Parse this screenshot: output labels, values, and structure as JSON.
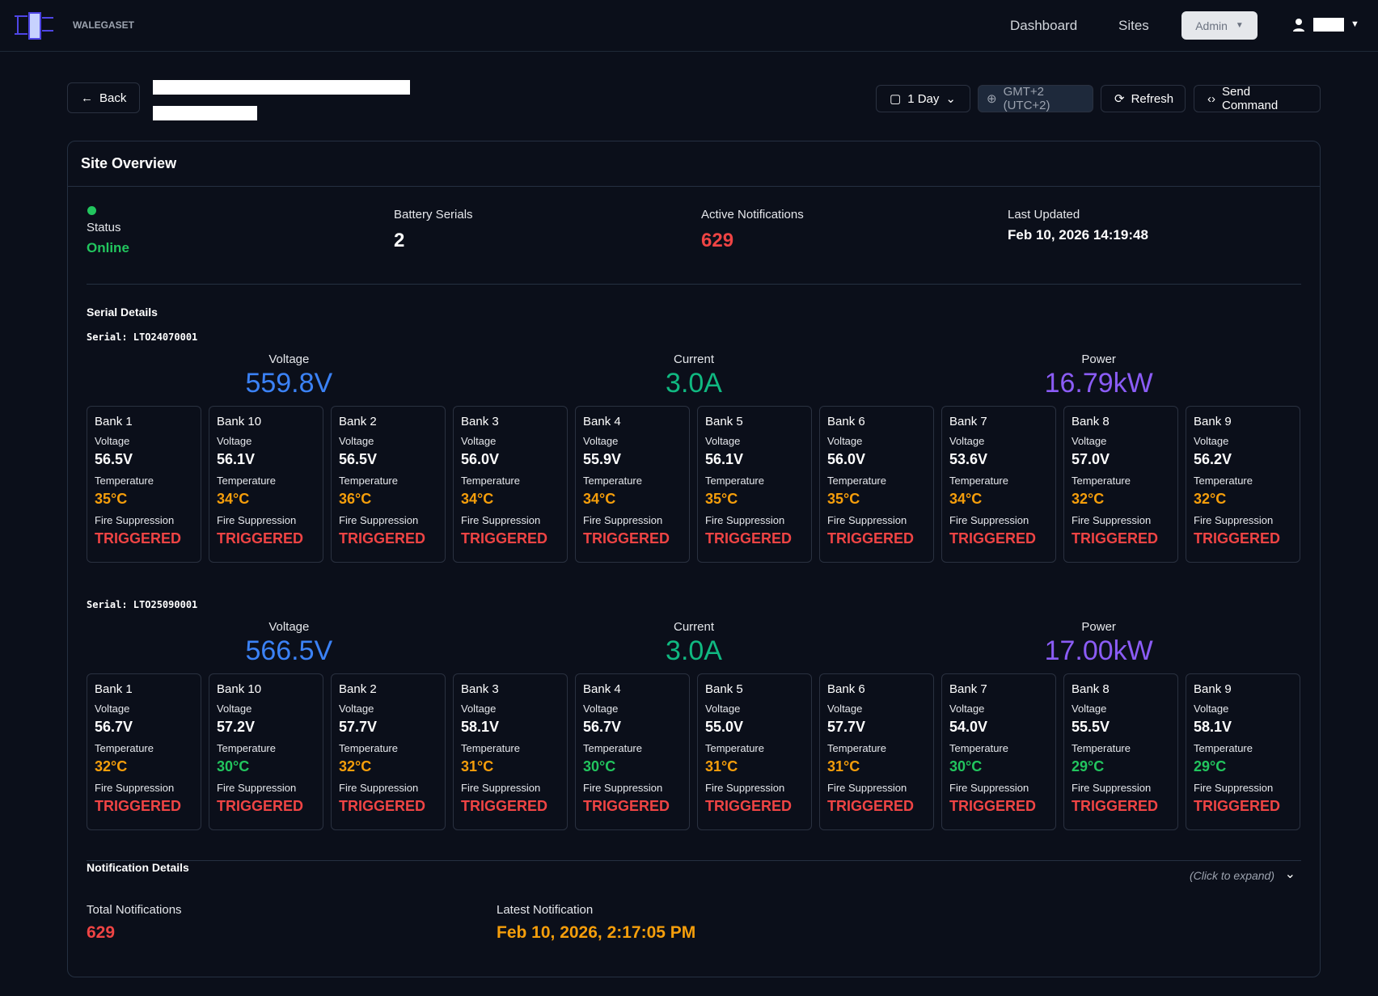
{
  "nav": {
    "brand": "WALEGASET",
    "links": [
      "Dashboard",
      "Sites"
    ],
    "role": "Admin"
  },
  "toolbar": {
    "back": "Back",
    "range": "1 Day",
    "timezone": "GMT+2 (UTC+2)",
    "refresh": "Refresh",
    "send": "Send Command"
  },
  "overview": {
    "title": "Site Overview",
    "stats": [
      {
        "label": "Status",
        "value": "Online",
        "color": "#22c55e"
      },
      {
        "label": "Battery Serials",
        "value": "2",
        "color": "#ffffff"
      },
      {
        "label": "Active Notifications",
        "value": "629",
        "color": "#ef4444"
      },
      {
        "label": "Last Updated",
        "value": "Feb 10, 2026 14:19:48",
        "color": "#ffffff"
      }
    ],
    "serial_title": "Serial Details",
    "bank_labels": {
      "voltage": "Voltage",
      "temperature": "Temperature",
      "fire": "Fire Suppression"
    },
    "serials": [
      {
        "label": "Serial: LTO24070001",
        "metrics": [
          {
            "label": "Voltage",
            "value": "559.8V",
            "color": "#3b82f6"
          },
          {
            "label": "Current",
            "value": "3.0A",
            "color": "#10b981"
          },
          {
            "label": "Power",
            "value": "16.79kW",
            "color": "#8b5cf6"
          }
        ],
        "banks": [
          {
            "name": "Bank 1",
            "voltage": "56.5V",
            "temperature": "35°C",
            "temp_color": "#f59e0b",
            "fire": "TRIGGERED"
          },
          {
            "name": "Bank 10",
            "voltage": "56.1V",
            "temperature": "34°C",
            "temp_color": "#f59e0b",
            "fire": "TRIGGERED"
          },
          {
            "name": "Bank 2",
            "voltage": "56.5V",
            "temperature": "36°C",
            "temp_color": "#f59e0b",
            "fire": "TRIGGERED"
          },
          {
            "name": "Bank 3",
            "voltage": "56.0V",
            "temperature": "34°C",
            "temp_color": "#f59e0b",
            "fire": "TRIGGERED"
          },
          {
            "name": "Bank 4",
            "voltage": "55.9V",
            "temperature": "34°C",
            "temp_color": "#f59e0b",
            "fire": "TRIGGERED"
          },
          {
            "name": "Bank 5",
            "voltage": "56.1V",
            "temperature": "35°C",
            "temp_color": "#f59e0b",
            "fire": "TRIGGERED"
          },
          {
            "name": "Bank 6",
            "voltage": "56.0V",
            "temperature": "35°C",
            "temp_color": "#f59e0b",
            "fire": "TRIGGERED"
          },
          {
            "name": "Bank 7",
            "voltage": "53.6V",
            "temperature": "34°C",
            "temp_color": "#f59e0b",
            "fire": "TRIGGERED"
          },
          {
            "name": "Bank 8",
            "voltage": "57.0V",
            "temperature": "32°C",
            "temp_color": "#f59e0b",
            "fire": "TRIGGERED"
          },
          {
            "name": "Bank 9",
            "voltage": "56.2V",
            "temperature": "32°C",
            "temp_color": "#f59e0b",
            "fire": "TRIGGERED"
          }
        ]
      },
      {
        "label": "Serial: LTO25090001",
        "metrics": [
          {
            "label": "Voltage",
            "value": "566.5V",
            "color": "#3b82f6"
          },
          {
            "label": "Current",
            "value": "3.0A",
            "color": "#10b981"
          },
          {
            "label": "Power",
            "value": "17.00kW",
            "color": "#8b5cf6"
          }
        ],
        "banks": [
          {
            "name": "Bank 1",
            "voltage": "56.7V",
            "temperature": "32°C",
            "temp_color": "#f59e0b",
            "fire": "TRIGGERED"
          },
          {
            "name": "Bank 10",
            "voltage": "57.2V",
            "temperature": "30°C",
            "temp_color": "#22c55e",
            "fire": "TRIGGERED"
          },
          {
            "name": "Bank 2",
            "voltage": "57.7V",
            "temperature": "32°C",
            "temp_color": "#f59e0b",
            "fire": "TRIGGERED"
          },
          {
            "name": "Bank 3",
            "voltage": "58.1V",
            "temperature": "31°C",
            "temp_color": "#f59e0b",
            "fire": "TRIGGERED"
          },
          {
            "name": "Bank 4",
            "voltage": "56.7V",
            "temperature": "30°C",
            "temp_color": "#22c55e",
            "fire": "TRIGGERED"
          },
          {
            "name": "Bank 5",
            "voltage": "55.0V",
            "temperature": "31°C",
            "temp_color": "#f59e0b",
            "fire": "TRIGGERED"
          },
          {
            "name": "Bank 6",
            "voltage": "57.7V",
            "temperature": "31°C",
            "temp_color": "#f59e0b",
            "fire": "TRIGGERED"
          },
          {
            "name": "Bank 7",
            "voltage": "54.0V",
            "temperature": "30°C",
            "temp_color": "#22c55e",
            "fire": "TRIGGERED"
          },
          {
            "name": "Bank 8",
            "voltage": "55.5V",
            "temperature": "29°C",
            "temp_color": "#22c55e",
            "fire": "TRIGGERED"
          },
          {
            "name": "Bank 9",
            "voltage": "58.1V",
            "temperature": "29°C",
            "temp_color": "#22c55e",
            "fire": "TRIGGERED"
          }
        ]
      }
    ]
  },
  "notifications": {
    "title": "Notification Details",
    "hint": "(Click to expand)",
    "total_label": "Total Notifications",
    "total": "629",
    "latest_label": "Latest Notification",
    "latest": "Feb 10, 2026, 2:17:05 PM"
  }
}
